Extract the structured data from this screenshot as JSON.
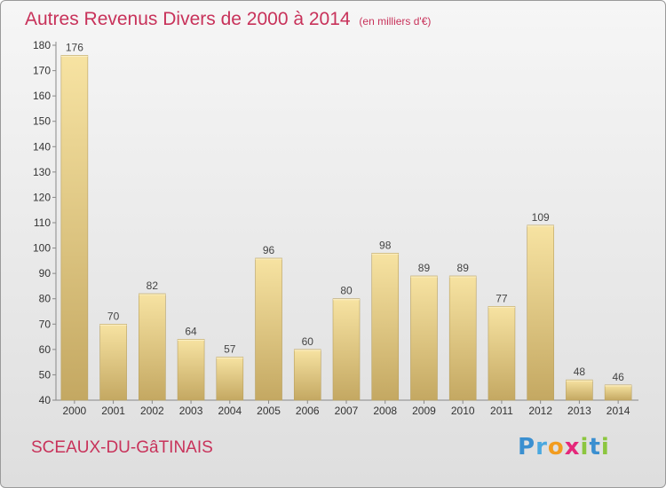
{
  "header": {
    "title": "Autres Revenus Divers de 2000 à 2014",
    "unit": "(en milliers d'€)"
  },
  "footer": {
    "city": "SCEAUX-DU-GâTINAIS",
    "logo_letters": [
      {
        "ch": "P",
        "color": "#3a8fd0"
      },
      {
        "ch": "r",
        "color": "#4aa8e0"
      },
      {
        "ch": "o",
        "color": "#f29c1f"
      },
      {
        "ch": "x",
        "color": "#e5287a"
      },
      {
        "ch": "i",
        "color": "#8cc63f"
      },
      {
        "ch": "t",
        "color": "#3a8fd0"
      },
      {
        "ch": "i",
        "color": "#8cc63f"
      }
    ]
  },
  "chart_data": {
    "type": "bar",
    "title": "Autres Revenus Divers de 2000 à 2014",
    "subtitle": "(en milliers d'€)",
    "xlabel": "",
    "ylabel": "",
    "categories": [
      "2000",
      "2001",
      "2002",
      "2003",
      "2004",
      "2005",
      "2006",
      "2007",
      "2008",
      "2009",
      "2010",
      "2011",
      "2012",
      "2013",
      "2014"
    ],
    "values": [
      176,
      70,
      82,
      64,
      57,
      96,
      60,
      80,
      98,
      89,
      89,
      77,
      109,
      48,
      46
    ],
    "ylim": [
      40,
      180
    ],
    "yticks": [
      40,
      50,
      60,
      70,
      80,
      90,
      100,
      110,
      120,
      130,
      140,
      150,
      160,
      170,
      180
    ],
    "grid": false,
    "legend": "none",
    "colors": {
      "bar_top": "#f7e3a2",
      "bar_bottom": "#c4a862",
      "bar_edge": "#b8a060"
    }
  }
}
